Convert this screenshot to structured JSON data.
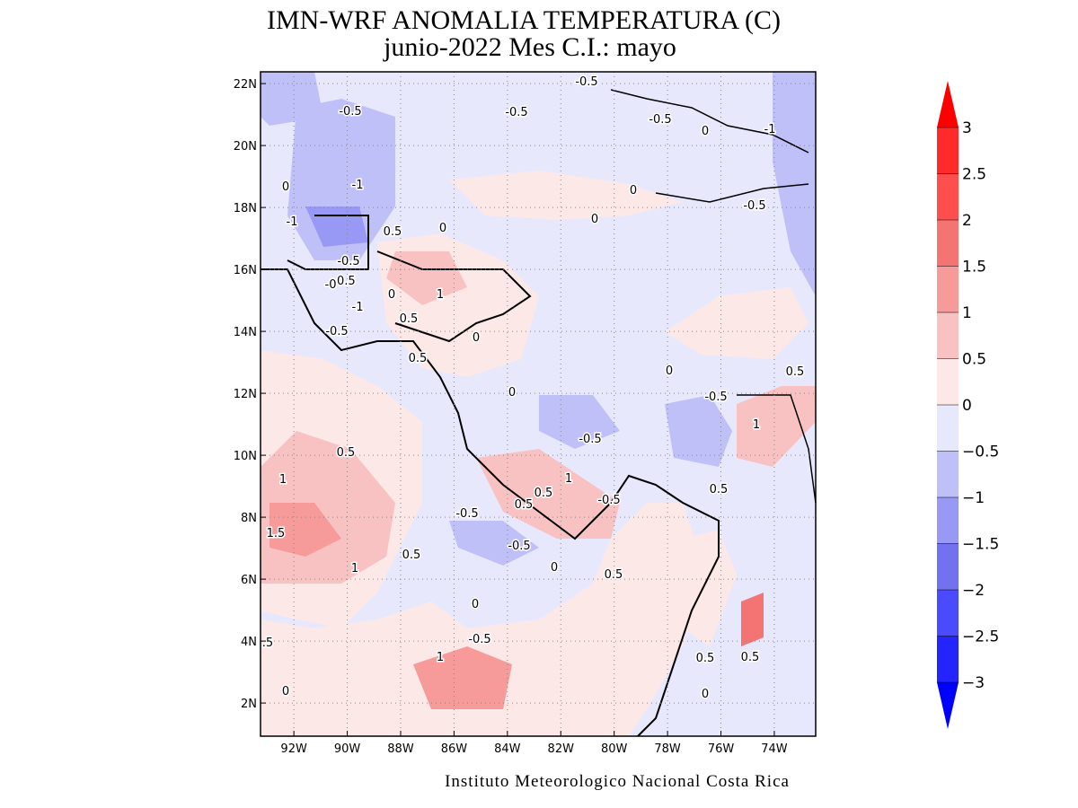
{
  "title": "IMN-WRF  ANOMALIA TEMPERATURA (C)",
  "subtitle": "junio-2022 Mes C.I.: mayo",
  "footer": "Instituto Meteorologico Nacional Costa Rica",
  "map": {
    "xlim": [
      -93.25,
      -72.45
    ],
    "ylim": [
      0.93,
      22.38
    ],
    "xticks": [
      {
        "value": -92,
        "label": "92W"
      },
      {
        "value": -90,
        "label": "90W"
      },
      {
        "value": -88,
        "label": "88W"
      },
      {
        "value": -86,
        "label": "86W"
      },
      {
        "value": -84,
        "label": "84W"
      },
      {
        "value": -82,
        "label": "82W"
      },
      {
        "value": -80,
        "label": "80W"
      },
      {
        "value": -78,
        "label": "78W"
      },
      {
        "value": -76,
        "label": "76W"
      },
      {
        "value": -74,
        "label": "74W"
      }
    ],
    "yticks": [
      {
        "value": 2,
        "label": "2N"
      },
      {
        "value": 4,
        "label": "4N"
      },
      {
        "value": 6,
        "label": "6N"
      },
      {
        "value": 8,
        "label": "8N"
      },
      {
        "value": 10,
        "label": "10N"
      },
      {
        "value": 12,
        "label": "12N"
      },
      {
        "value": 14,
        "label": "14N"
      },
      {
        "value": 16,
        "label": "16N"
      },
      {
        "value": 18,
        "label": "18N"
      },
      {
        "value": 20,
        "label": "20N"
      },
      {
        "value": 22,
        "label": "22N"
      }
    ],
    "grid": true,
    "contour_labels": [
      "-0.5",
      "-0.5",
      "-0.5",
      "-0.5",
      "0",
      "-1",
      "0",
      "-1",
      "0",
      "-0.5",
      "-1",
      "0",
      "0",
      "0.5",
      "-0.5",
      "-0.5",
      "-0",
      "0",
      "1",
      "-1",
      "0.5",
      "-0.5",
      "0",
      "0.5",
      "0",
      "0.5",
      "-0.5",
      "0",
      "1",
      "-0.5",
      "0.5",
      "1",
      "1",
      "0.5",
      "0.5",
      "0.5",
      "-0.5",
      "-0.5",
      "1.5",
      "-0.5",
      "0.5",
      "1",
      "0.5",
      "0",
      "0",
      "-0.5",
      "1",
      "0.5",
      "0.5",
      "0",
      ".5",
      "0"
    ]
  },
  "colorbar": {
    "levels": [
      3,
      2.5,
      2,
      1.5,
      1,
      0.5,
      0,
      -0.5,
      -1,
      -1.5,
      -2,
      -2.5,
      -3
    ],
    "colors": [
      "#ff0000",
      "#ff2a2a",
      "#ff4e4e",
      "#f47474",
      "#f69a9a",
      "#f9c2c2",
      "#fde8e8",
      "#e8e8fd",
      "#c0c0f8",
      "#9898f5",
      "#7272f0",
      "#4a4aff",
      "#2424ff",
      "#0000ff"
    ]
  }
}
